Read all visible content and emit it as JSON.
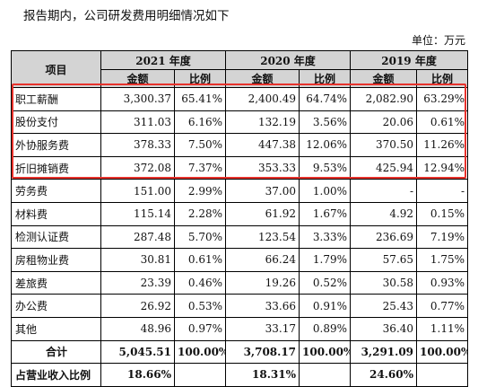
{
  "intro_text": "报告期内，公司研发费用明细情况如下",
  "unit_text": "单位：万元",
  "header": {
    "item": "项目",
    "years": [
      "2021 年度",
      "2020 年度",
      "2019 年度"
    ],
    "amount": "金额",
    "ratio": "比例"
  },
  "rows": [
    {
      "label": "职工薪酬",
      "v": [
        "3,300.37",
        "65.41%",
        "2,400.49",
        "64.74%",
        "2,082.90",
        "63.29%"
      ]
    },
    {
      "label": "股份支付",
      "v": [
        "311.03",
        "6.16%",
        "132.19",
        "3.56%",
        "20.06",
        "0.61%"
      ]
    },
    {
      "label": "外协服务费",
      "v": [
        "378.33",
        "7.50%",
        "447.38",
        "12.06%",
        "370.50",
        "11.26%"
      ]
    },
    {
      "label": "折旧摊销费",
      "v": [
        "372.08",
        "7.37%",
        "353.33",
        "9.53%",
        "425.94",
        "12.94%"
      ]
    },
    {
      "label": "劳务费",
      "v": [
        "151.00",
        "2.99%",
        "37.00",
        "1.00%",
        "-",
        "-"
      ]
    },
    {
      "label": "材料费",
      "v": [
        "115.14",
        "2.28%",
        "61.92",
        "1.67%",
        "4.92",
        "0.15%"
      ]
    },
    {
      "label": "检测认证费",
      "v": [
        "287.48",
        "5.70%",
        "123.54",
        "3.33%",
        "236.69",
        "7.19%"
      ]
    },
    {
      "label": "房租物业费",
      "v": [
        "30.81",
        "0.61%",
        "66.24",
        "1.79%",
        "57.65",
        "1.75%"
      ]
    },
    {
      "label": "差旅费",
      "v": [
        "23.39",
        "0.46%",
        "19.26",
        "0.52%",
        "30.58",
        "0.93%"
      ]
    },
    {
      "label": "办公费",
      "v": [
        "26.92",
        "0.53%",
        "33.66",
        "0.91%",
        "25.43",
        "0.77%"
      ]
    },
    {
      "label": "其他",
      "v": [
        "48.96",
        "0.97%",
        "33.17",
        "0.89%",
        "36.40",
        "1.11%"
      ]
    }
  ],
  "total": {
    "label": "合计",
    "v": [
      "5,045.51",
      "100.00%",
      "3,708.17",
      "100.00%",
      "3,291.09",
      "100.00%"
    ]
  },
  "revenue_ratio": {
    "label": "占营业收入比例",
    "v": [
      "18.66%",
      "18.31%",
      "24.60%"
    ]
  },
  "colors": {
    "header_bg": "#d4d4d4",
    "highlight_border": "#e8322c"
  }
}
